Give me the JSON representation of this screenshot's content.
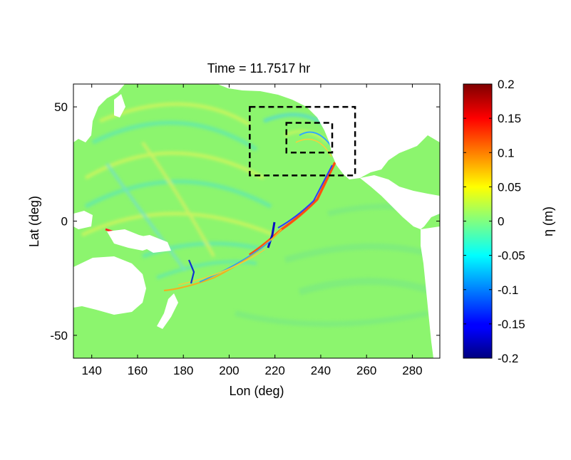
{
  "chart_data": {
    "type": "heatmap",
    "title": "Time = 11.7517 hr",
    "xlabel": "Lon (deg)",
    "ylabel": "Lat (deg)",
    "xlim": [
      132,
      292
    ],
    "ylim": [
      -60,
      60
    ],
    "xticks": [
      "140",
      "160",
      "180",
      "200",
      "220",
      "240",
      "260",
      "280"
    ],
    "xtick_values": [
      140,
      160,
      180,
      200,
      220,
      240,
      260,
      280
    ],
    "yticks": [
      "50",
      "0",
      "-50"
    ],
    "ytick_values": [
      50,
      0,
      -50
    ],
    "grid": false,
    "colorbar": {
      "label": "η (m)",
      "clim": [
        -0.2,
        0.2
      ],
      "colormap": "jet",
      "ticks": [
        "0.2",
        "0.15",
        "0.1",
        "0.05",
        "0",
        "-0.05",
        "-0.1",
        "-0.15",
        "-0.2"
      ],
      "tick_values": [
        0.2,
        0.15,
        0.1,
        0.05,
        0,
        -0.05,
        -0.1,
        -0.15,
        -0.2
      ]
    },
    "annotations": [
      {
        "type": "dashed-box",
        "lon": [
          209,
          255
        ],
        "lat": [
          20,
          50
        ]
      },
      {
        "type": "dashed-box",
        "lon": [
          225,
          245
        ],
        "lat": [
          30,
          43
        ]
      }
    ],
    "colors": {
      "background_field": "#8cf56e",
      "land": "#ffffff"
    }
  }
}
